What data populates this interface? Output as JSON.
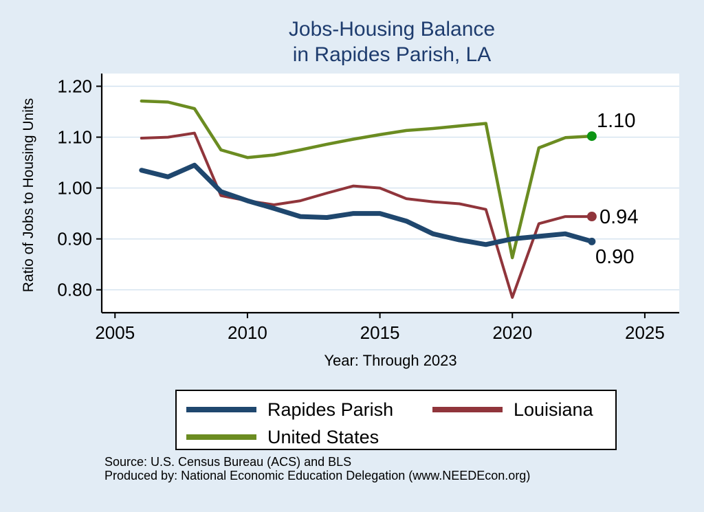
{
  "title": {
    "line1": "Jobs-Housing Balance",
    "line2": "in Rapides Parish, LA"
  },
  "end_labels": {
    "united_states": "1.10",
    "louisiana": "0.94",
    "rapides_parish": "0.90"
  },
  "footer": {
    "source": "Source: U.S. Census Bureau (ACS) and BLS",
    "produced_by": "Produced by: National Economic Education Delegation (www.NEEDEcon.org)"
  },
  "colors": {
    "background": "#e2ecf5",
    "plot_background": "#ffffff",
    "grid": "#d3e2ef",
    "axis": "#000000",
    "title": "#1e3c6e"
  },
  "chart_data": {
    "type": "line",
    "title": "Jobs-Housing Balance in Rapides Parish, LA",
    "xlabel": "Year: Through 2023",
    "ylabel": "Ratio of Jobs to Housing Units",
    "x": [
      2006,
      2007,
      2008,
      2009,
      2010,
      2011,
      2012,
      2013,
      2014,
      2015,
      2016,
      2017,
      2018,
      2019,
      2020,
      2021,
      2022,
      2023
    ],
    "series": [
      {
        "name": "Rapides Parish",
        "color": "#1f476e",
        "width": 7,
        "values": [
          1.035,
          1.022,
          1.045,
          0.993,
          0.975,
          0.96,
          0.944,
          0.942,
          0.95,
          0.95,
          0.935,
          0.91,
          0.898,
          0.889,
          0.9,
          0.905,
          0.91,
          0.895
        ],
        "end_marker": {
          "color": "#1f476e",
          "r": 5.5
        },
        "end_value_label": "0.90"
      },
      {
        "name": "Louisiana",
        "color": "#90353b",
        "width": 4,
        "values": [
          1.098,
          1.1,
          1.108,
          0.985,
          0.975,
          0.967,
          0.975,
          0.99,
          1.004,
          1.0,
          0.979,
          0.973,
          0.969,
          0.958,
          0.785,
          0.93,
          0.944,
          0.944
        ],
        "end_marker": {
          "color": "#90353b",
          "r": 7
        },
        "end_value_label": "0.94"
      },
      {
        "name": "United States",
        "color": "#6b8c21",
        "width": 4.5,
        "values": [
          1.171,
          1.169,
          1.156,
          1.075,
          1.06,
          1.065,
          1.075,
          1.086,
          1.096,
          1.105,
          1.113,
          1.117,
          1.122,
          1.127,
          0.863,
          1.079,
          1.099,
          1.102
        ],
        "end_marker": {
          "color": "#0c9414",
          "r": 7
        },
        "end_value_label": "1.10"
      }
    ],
    "xticks": [
      2005,
      2010,
      2015,
      2020,
      2025
    ],
    "yticks": [
      0.8,
      0.9,
      1.0,
      1.1,
      1.2
    ],
    "xlim": [
      2004.5,
      2026.3
    ],
    "ylim": [
      0.755,
      1.225
    ],
    "grid": true,
    "legend_position": "bottom"
  }
}
